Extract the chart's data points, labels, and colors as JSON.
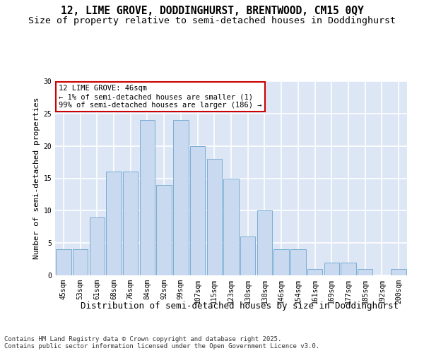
{
  "title_line1": "12, LIME GROVE, DODDINGHURST, BRENTWOOD, CM15 0QY",
  "title_line2": "Size of property relative to semi-detached houses in Doddinghurst",
  "xlabel": "Distribution of semi-detached houses by size in Doddinghurst",
  "ylabel": "Number of semi-detached properties",
  "categories": [
    "45sqm",
    "53sqm",
    "61sqm",
    "68sqm",
    "76sqm",
    "84sqm",
    "92sqm",
    "99sqm",
    "107sqm",
    "115sqm",
    "123sqm",
    "130sqm",
    "138sqm",
    "146sqm",
    "154sqm",
    "161sqm",
    "169sqm",
    "177sqm",
    "185sqm",
    "192sqm",
    "200sqm"
  ],
  "values": [
    4,
    4,
    9,
    16,
    16,
    24,
    14,
    24,
    20,
    18,
    15,
    6,
    10,
    4,
    4,
    1,
    2,
    2,
    1,
    0,
    1
  ],
  "bar_color": "#c9d9ef",
  "bar_edge_color": "#7aadd4",
  "annotation_text": "12 LIME GROVE: 46sqm\n← 1% of semi-detached houses are smaller (1)\n99% of semi-detached houses are larger (186) →",
  "annotation_box_color": "#ffffff",
  "annotation_box_edge": "#cc0000",
  "ylim": [
    0,
    30
  ],
  "yticks": [
    0,
    5,
    10,
    15,
    20,
    25,
    30
  ],
  "background_color": "#dce6f5",
  "grid_color": "#ffffff",
  "fig_bg": "#ffffff",
  "footnote": "Contains HM Land Registry data © Crown copyright and database right 2025.\nContains public sector information licensed under the Open Government Licence v3.0.",
  "title_fontsize": 10.5,
  "subtitle_fontsize": 9.5,
  "xlabel_fontsize": 9,
  "ylabel_fontsize": 8,
  "tick_fontsize": 7,
  "annotation_fontsize": 7.5,
  "footnote_fontsize": 6.5
}
